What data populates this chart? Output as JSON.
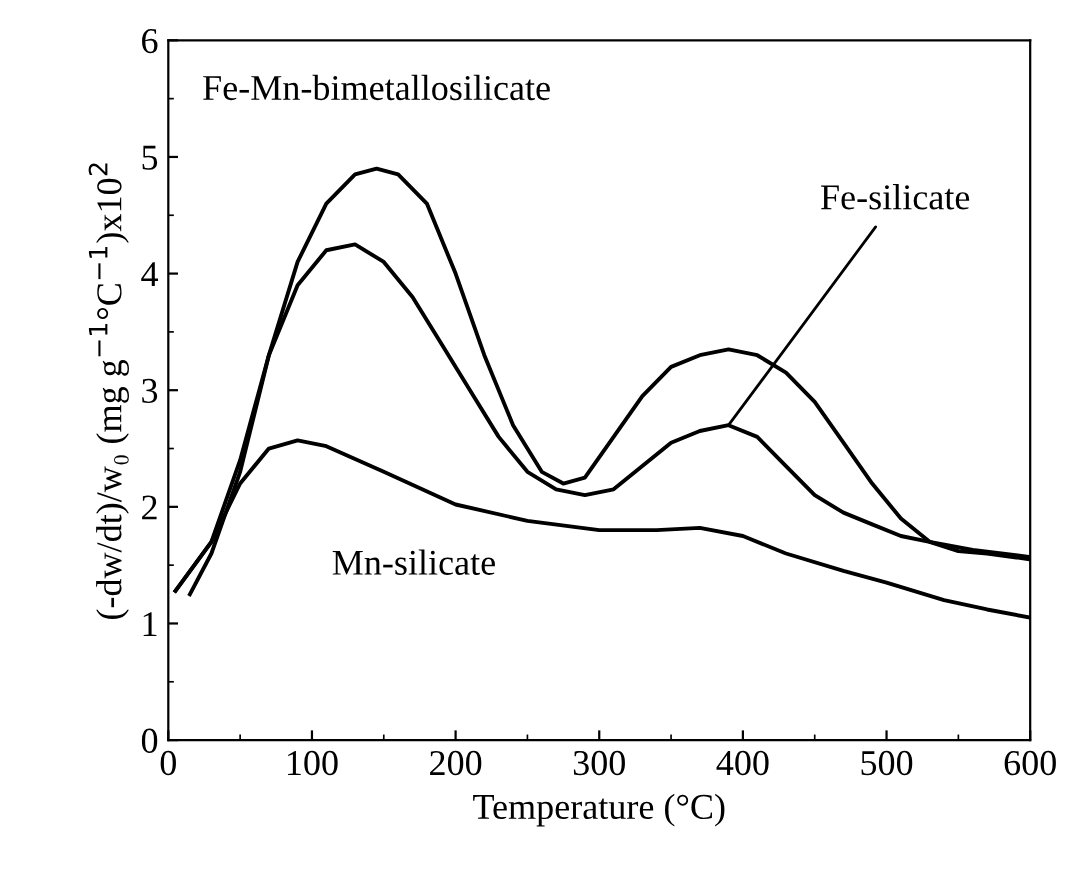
{
  "chart_data": {
    "type": "line",
    "xlabel": "Temperature (°C)",
    "ylabel": "(-dw/dt)/w₀ (mg g$^{−1}$°C$^{−1}$)x10$^{2}$",
    "xlim": [
      0,
      600
    ],
    "ylim": [
      0,
      6
    ],
    "xticks": [
      0,
      100,
      200,
      300,
      400,
      500,
      600
    ],
    "yticks": [
      0,
      1,
      2,
      3,
      4,
      5,
      6
    ],
    "grid": false,
    "legend": false,
    "marker": "none",
    "line_style": "solid",
    "series": [
      {
        "name": "Fe-Mn-bimetallosilicate",
        "color": "#000000",
        "x": [
          15,
          30,
          50,
          70,
          90,
          110,
          130,
          145,
          160,
          180,
          200,
          220,
          240,
          260,
          275,
          290,
          310,
          330,
          350,
          370,
          390,
          410,
          430,
          450,
          470,
          490,
          510,
          530,
          550,
          570,
          600
        ],
        "values": [
          1.25,
          1.6,
          2.3,
          3.3,
          4.1,
          4.6,
          4.85,
          4.9,
          4.85,
          4.6,
          4.0,
          3.3,
          2.7,
          2.3,
          2.2,
          2.25,
          2.6,
          2.95,
          3.2,
          3.3,
          3.35,
          3.3,
          3.15,
          2.9,
          2.55,
          2.2,
          1.9,
          1.7,
          1.62,
          1.6,
          1.55
        ]
      },
      {
        "name": "Fe-silicate",
        "color": "#000000",
        "x": [
          5,
          30,
          50,
          70,
          90,
          110,
          130,
          150,
          170,
          190,
          210,
          230,
          250,
          270,
          290,
          310,
          330,
          350,
          370,
          390,
          410,
          430,
          450,
          470,
          490,
          510,
          530,
          560,
          600
        ],
        "values": [
          1.28,
          1.7,
          2.4,
          3.3,
          3.9,
          4.2,
          4.25,
          4.1,
          3.8,
          3.4,
          3.0,
          2.6,
          2.3,
          2.15,
          2.1,
          2.15,
          2.35,
          2.55,
          2.65,
          2.7,
          2.6,
          2.35,
          2.1,
          1.95,
          1.85,
          1.75,
          1.7,
          1.63,
          1.57
        ]
      },
      {
        "name": "Mn-silicate",
        "color": "#000000",
        "x": [
          5,
          30,
          50,
          70,
          90,
          110,
          150,
          200,
          250,
          300,
          340,
          370,
          400,
          430,
          470,
          500,
          540,
          570,
          600
        ],
        "values": [
          1.28,
          1.7,
          2.2,
          2.5,
          2.57,
          2.52,
          2.3,
          2.02,
          1.88,
          1.8,
          1.8,
          1.82,
          1.75,
          1.6,
          1.45,
          1.35,
          1.2,
          1.12,
          1.05
        ]
      }
    ]
  }
}
